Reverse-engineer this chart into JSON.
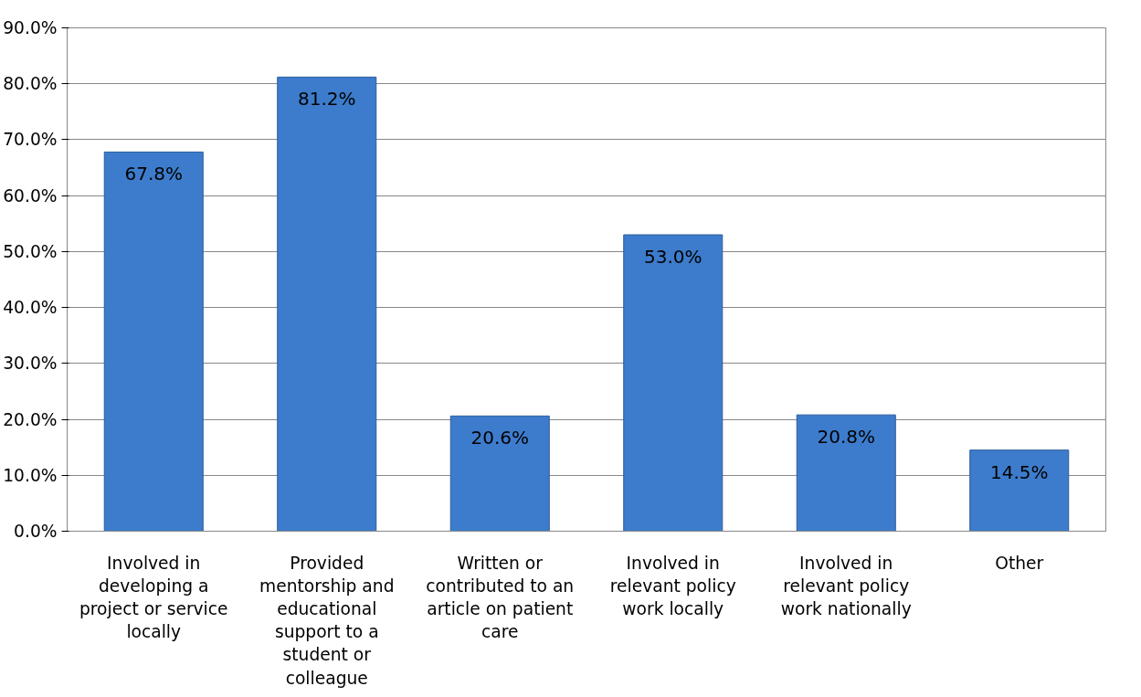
{
  "chart_data": {
    "type": "bar",
    "categories": [
      "Involved in developing a project or service locally",
      "Provided mentorship and educational support to a student or colleague",
      "Written or contributed to an article on patient care",
      "Involved in relevant policy work locally",
      "Involved in relevant policy work nationally",
      "Other"
    ],
    "values": [
      67.8,
      81.2,
      20.6,
      53.0,
      20.8,
      14.5
    ],
    "value_labels": [
      "67.8%",
      "81.2%",
      "20.6%",
      "53.0%",
      "20.8%",
      "14.5%"
    ],
    "color": "#3d7ccc",
    "ylim": [
      0,
      90
    ],
    "yticks": [
      {
        "value": 0,
        "label": "0.0%"
      },
      {
        "value": 10,
        "label": "10.0%"
      },
      {
        "value": 20,
        "label": "20.0%"
      },
      {
        "value": 30,
        "label": "30.0%"
      },
      {
        "value": 40,
        "label": "40.0%"
      },
      {
        "value": 50,
        "label": "50.0%"
      },
      {
        "value": 60,
        "label": "60.0%"
      },
      {
        "value": 70,
        "label": "70.0%"
      },
      {
        "value": 80,
        "label": "80.0%"
      },
      {
        "value": 90,
        "label": "90.0%"
      }
    ],
    "grid": "y"
  }
}
